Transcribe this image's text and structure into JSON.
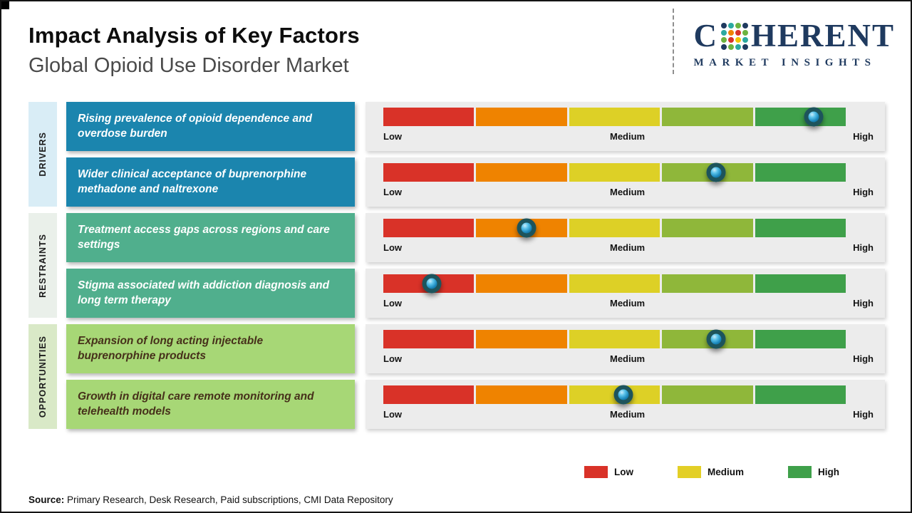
{
  "header": {
    "title": "Impact Analysis of Key Factors",
    "subtitle": "Global Opioid Use Disorder Market"
  },
  "logo": {
    "name_prefix": "C",
    "name_suffix": "HERENT",
    "tagline": "MARKET INSIGHTS",
    "brand_color": "#1f3a5f",
    "mosaic_colors": [
      "#1f3a5f",
      "#2ba9a0",
      "#6cb33f",
      "#1f3a5f",
      "#2ba9a0",
      "#ef8300",
      "#d93228",
      "#6cb33f",
      "#6cb33f",
      "#d93228",
      "#f2c500",
      "#2ba9a0",
      "#1f3a5f",
      "#6cb33f",
      "#2ba9a0",
      "#1f3a5f"
    ]
  },
  "bar": {
    "segment_colors": [
      "#d93228",
      "#ef8300",
      "#ddd026",
      "#8fb73a",
      "#3fa04a"
    ],
    "scale_labels": [
      "Low",
      "Medium",
      "High"
    ]
  },
  "groups": [
    {
      "label": "DRIVERS",
      "strip_color": "#d9edf6",
      "box_color": "#1b85ae",
      "box_text_color": "#ffffff",
      "factors": [
        {
          "text": "Rising prevalence of opioid dependence and overdose burden",
          "position_pct": 93
        },
        {
          "text": "Wider clinical acceptance of buprenorphine methadone and naltrexone",
          "position_pct": 72
        }
      ]
    },
    {
      "label": "RESTRAINTS",
      "strip_color": "#eaf0ea",
      "box_color": "#50af8d",
      "box_text_color": "#ffffff",
      "factors": [
        {
          "text": "Treatment access gaps across regions and care settings",
          "position_pct": 31
        },
        {
          "text": "Stigma associated with addiction diagnosis and long term therapy",
          "position_pct": 10.5
        }
      ]
    },
    {
      "label": "OPPORTUNITIES",
      "strip_color": "#d9e9c7",
      "box_color": "#a7d776",
      "box_text_color": "#46301a",
      "factors": [
        {
          "text": "Expansion of long acting injectable buprenorphine products",
          "position_pct": 72
        },
        {
          "text": "Growth in digital care remote monitoring and telehealth models",
          "position_pct": 52
        }
      ]
    }
  ],
  "legend": [
    {
      "label": "Low",
      "color": "#d93228"
    },
    {
      "label": "Medium",
      "color": "#e3cf26"
    },
    {
      "label": "High",
      "color": "#3fa04a"
    }
  ],
  "source": {
    "label": "Source:",
    "text": " Primary Research, Desk Research, Paid subscriptions, CMI Data Repository"
  },
  "chart_data": {
    "type": "table",
    "title": "Impact Analysis of Key Factors",
    "subtitle": "Global Opioid Use Disorder Market",
    "scale": [
      "Low",
      "Medium",
      "High"
    ],
    "scale_range_pct": [
      0,
      100
    ],
    "rows": [
      {
        "category": "Drivers",
        "factor": "Rising prevalence of opioid dependence and overdose burden",
        "impact_position_pct": 93,
        "impact_level": "High"
      },
      {
        "category": "Drivers",
        "factor": "Wider clinical acceptance of buprenorphine methadone and naltrexone",
        "impact_position_pct": 72,
        "impact_level": "Medium-High"
      },
      {
        "category": "Restraints",
        "factor": "Treatment access gaps across regions and care settings",
        "impact_position_pct": 31,
        "impact_level": "Low-Medium"
      },
      {
        "category": "Restraints",
        "factor": "Stigma associated with addiction diagnosis and long term therapy",
        "impact_position_pct": 10.5,
        "impact_level": "Low"
      },
      {
        "category": "Opportunities",
        "factor": "Expansion of long acting injectable buprenorphine products",
        "impact_position_pct": 72,
        "impact_level": "Medium-High"
      },
      {
        "category": "Opportunities",
        "factor": "Growth in digital care remote monitoring and telehealth models",
        "impact_position_pct": 52,
        "impact_level": "Medium"
      }
    ]
  }
}
